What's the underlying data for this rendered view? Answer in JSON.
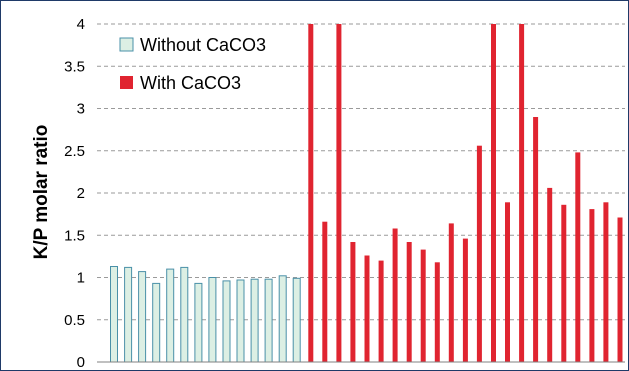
{
  "chart_data": {
    "type": "bar",
    "ylabel": "K/P molar ratio",
    "xlabel": "",
    "ylim": [
      0,
      4
    ],
    "yticks": [
      "0",
      "0.5",
      "1",
      "1.5",
      "2",
      "2.5",
      "3",
      "3.5",
      "4"
    ],
    "grid": true,
    "legend": {
      "placement": "top-left"
    },
    "series": [
      {
        "name": "Without CaCO3",
        "color": "#dcefe4",
        "stroke": "#4a90a8",
        "values": [
          1.13,
          1.12,
          1.07,
          0.93,
          1.1,
          1.12,
          0.93,
          1.0,
          0.96,
          0.97,
          0.98,
          0.98,
          1.02,
          0.99
        ]
      },
      {
        "name": "With CaCO3",
        "color": "#e02430",
        "stroke": "#e02430",
        "values": [
          4.0,
          1.66,
          4.0,
          1.42,
          1.26,
          1.2,
          1.58,
          1.42,
          1.33,
          1.18,
          1.64,
          1.46,
          2.56,
          4.0,
          1.89,
          4.0,
          2.9,
          2.06,
          1.86,
          2.48,
          1.81,
          1.89,
          1.71
        ]
      }
    ]
  }
}
